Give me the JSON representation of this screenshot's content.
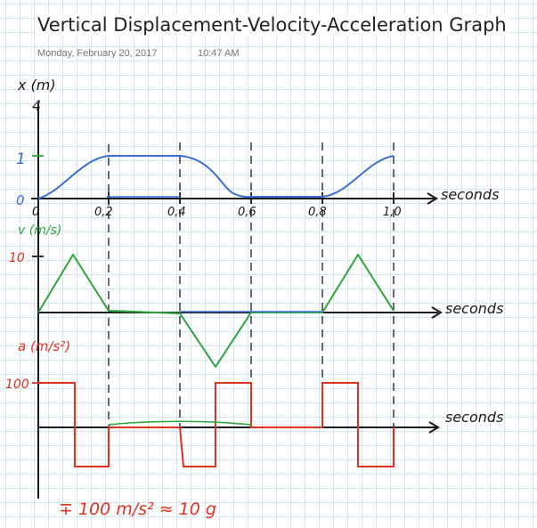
{
  "page": {
    "title": "Vertical Displacement-Velocity-Acceleration Graph",
    "date": "Monday, February 20, 2017",
    "time": "10:47 AM"
  },
  "graph": {
    "x_ticks": [
      "0",
      "0,2",
      "0,4",
      "0,6",
      "0,8",
      "1,0"
    ],
    "x_axis_label": "seconds",
    "panels": {
      "position": {
        "y_label": "x (m)",
        "y_ticks": [
          "4",
          "1",
          "0"
        ]
      },
      "velocity": {
        "y_label": "v (m/s)",
        "y_ticks": [
          "10"
        ]
      },
      "acceleration": {
        "y_label": "a (m/s²)",
        "y_ticks": [
          "100"
        ]
      }
    },
    "footnote": "∓ 100 m/s² ≈ 10 g"
  },
  "colors": {
    "position": "#3a6fd8",
    "velocity": "#2aa63a",
    "acceleration": "#e0321e",
    "ink": "#1a1a1a",
    "grid": "#d2e3ef"
  },
  "chart_data": [
    {
      "type": "line",
      "title": "",
      "xlabel": "seconds",
      "ylabel": "x (m)",
      "x": [
        0,
        0.1,
        0.2,
        0.4,
        0.5,
        0.6,
        0.8,
        0.9,
        1.0
      ],
      "series": [
        {
          "values": [
            0,
            0.5,
            1,
            1,
            0.5,
            0,
            0,
            0.5,
            1
          ]
        }
      ]
    },
    {
      "type": "line",
      "title": "",
      "xlabel": "seconds",
      "ylabel": "v (m/s)",
      "x": [
        0,
        0.1,
        0.2,
        0.4,
        0.5,
        0.6,
        0.8,
        0.9,
        1.0
      ],
      "series": [
        {
          "values": [
            0,
            10,
            0,
            0,
            -10,
            0,
            0,
            10,
            0
          ]
        }
      ]
    },
    {
      "type": "line",
      "title": "",
      "xlabel": "seconds",
      "ylabel": "a (m/s²)",
      "x": [
        0,
        0.1,
        0.1,
        0.2,
        0.2,
        0.4,
        0.4,
        0.5,
        0.5,
        0.6,
        0.6,
        0.8,
        0.8,
        0.9,
        0.9,
        1.0
      ],
      "series": [
        {
          "values": [
            100,
            100,
            -100,
            -100,
            0,
            0,
            -100,
            -100,
            100,
            100,
            0,
            0,
            100,
            100,
            -100,
            -100
          ]
        }
      ]
    }
  ]
}
